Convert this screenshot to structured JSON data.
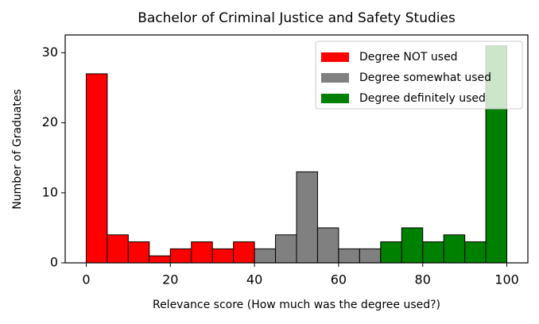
{
  "chart_data": {
    "type": "histogram",
    "title": "Bachelor of Criminal Justice and Safety Studies",
    "x_label": "Relevance score (How much was the degree used?)",
    "y_label": "Number of Graduates",
    "series": [
      {
        "name": "Degree NOT used",
        "color": "#ff0000",
        "bins": [
          0,
          5,
          10,
          15,
          20,
          25,
          30,
          35,
          40
        ],
        "values": [
          27,
          4,
          3,
          1,
          2,
          3,
          2,
          3
        ]
      },
      {
        "name": "Degree somewhat used",
        "color": "#808080",
        "bins": [
          40,
          45,
          50,
          55,
          60,
          65,
          70
        ],
        "values": [
          2,
          4,
          13,
          5,
          2,
          2
        ]
      },
      {
        "name": "Degree definitely used",
        "color": "#008000",
        "bins": [
          70,
          75,
          80,
          85,
          90,
          95,
          100
        ],
        "values": [
          3,
          5,
          3,
          4,
          3,
          31
        ]
      }
    ],
    "xlim": [
      -5,
      105
    ],
    "ylim": [
      0,
      32.55
    ],
    "xticks": [
      0,
      20,
      40,
      60,
      80,
      100
    ],
    "yticks": [
      0,
      10,
      20,
      30
    ],
    "legend": "upper right"
  }
}
